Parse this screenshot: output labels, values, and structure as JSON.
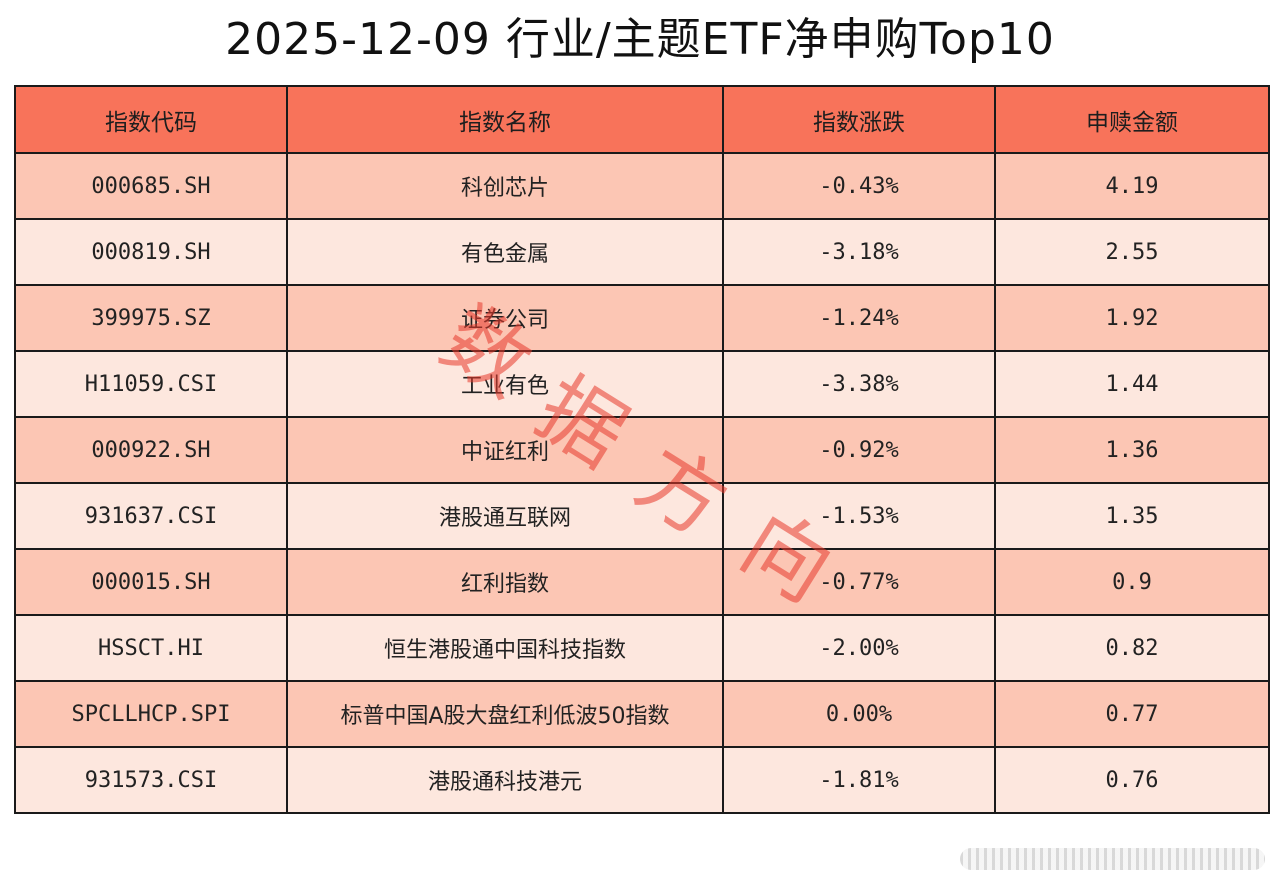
{
  "chart_data": {
    "type": "table",
    "title": "2025-12-09 行业/主题ETF净申购Top10",
    "columns": [
      "指数代码",
      "指数名称",
      "指数涨跌",
      "申赎金额"
    ],
    "rows": [
      [
        "000685.SH",
        "科创芯片",
        "-0.43%",
        "4.19"
      ],
      [
        "000819.SH",
        "有色金属",
        "-3.18%",
        "2.55"
      ],
      [
        "399975.SZ",
        "证券公司",
        "-1.24%",
        "1.92"
      ],
      [
        "H11059.CSI",
        "工业有色",
        "-3.38%",
        "1.44"
      ],
      [
        "000922.SH",
        "中证红利",
        "-0.92%",
        "1.36"
      ],
      [
        "931637.CSI",
        "港股通互联网",
        "-1.53%",
        "1.35"
      ],
      [
        "000015.SH",
        "红利指数",
        "-0.77%",
        "0.9"
      ],
      [
        "HSSCT.HI",
        "恒生港股通中国科技指数",
        "-2.00%",
        "0.82"
      ],
      [
        "SPCLLHCP.SPI",
        "标普中国A股大盘红利低波50指数",
        "0.00%",
        "0.77"
      ],
      [
        "931573.CSI",
        "港股通科技港元",
        "-1.81%",
        "0.76"
      ]
    ]
  },
  "watermark": {
    "chars": [
      "数",
      "据",
      "方",
      "向"
    ]
  },
  "colors": {
    "header_bg": "#f8735a",
    "row_dark": "#fcc6b4",
    "row_light": "#fde7de",
    "watermark": "#e83a2c"
  }
}
